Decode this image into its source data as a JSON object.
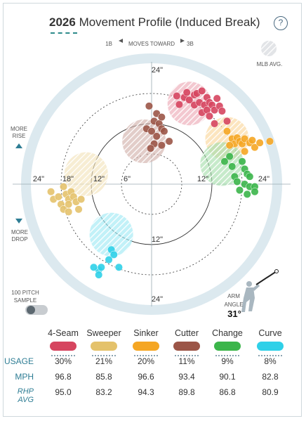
{
  "header": {
    "year": "2026",
    "title": "Movement Profile (Induced Break)",
    "help_label": "?"
  },
  "nav": {
    "left_label": "1B",
    "center_label": "MOVES TOWARD",
    "right_label": "3B"
  },
  "legend": {
    "mlb_avg_label": "MLB AVG."
  },
  "axis_labels": {
    "more_rise": "MORE\nRISE",
    "more_drop": "MORE\nDROP",
    "top24": "24\"",
    "bottom24": "24\"",
    "bottom12": "12\"",
    "left24": "24\"",
    "left18": "18\"",
    "left12": "12\"",
    "left6": "6\"",
    "right12": "12\"",
    "right24": "24\""
  },
  "sample": {
    "label": "100 PITCH\nSAMPLE",
    "toggle_on": false
  },
  "arm": {
    "label": "ARM\nANGLE",
    "value": "31°"
  },
  "colors": {
    "4-Seam": "#d6455f",
    "Sweeper": "#e4c26b",
    "Sinker": "#f5a623",
    "Cutter": "#9b5547",
    "Change": "#3bb54a",
    "Curve": "#2fd0e8",
    "ring_bg": "#dce9ef",
    "label_teal": "#2e7d94"
  },
  "table": {
    "pitches": [
      "4-Seam",
      "Sweeper",
      "Sinker",
      "Cutter",
      "Change",
      "Curve"
    ],
    "rows": [
      {
        "label": "USAGE",
        "values": [
          "30%",
          "21%",
          "20%",
          "11%",
          "9%",
          "8%"
        ]
      },
      {
        "label": "MPH",
        "values": [
          "96.8",
          "85.8",
          "96.6",
          "93.4",
          "90.1",
          "82.8"
        ]
      },
      {
        "label": "RHP AVG",
        "values": [
          "95.0",
          "83.2",
          "94.3",
          "89.8",
          "86.8",
          "80.9"
        ]
      }
    ]
  },
  "chart_data": {
    "type": "scatter",
    "xlabel": "",
    "ylabel": "",
    "xlim": [
      -24,
      24
    ],
    "ylim": [
      -24,
      24
    ],
    "mlb_avg": [
      {
        "name": "4-Seam",
        "x": 7.5,
        "y": 16
      },
      {
        "name": "Sinker",
        "x": 15,
        "y": 9
      },
      {
        "name": "Sweeper",
        "x": -13,
        "y": 2
      },
      {
        "name": "Cutter",
        "x": -1.5,
        "y": 8.5
      },
      {
        "name": "Change",
        "x": 14,
        "y": 4
      },
      {
        "name": "Curve",
        "x": -8,
        "y": -10
      }
    ],
    "series": [
      {
        "name": "4-Seam",
        "points": [
          [
            5,
            17.5
          ],
          [
            5.5,
            15.8
          ],
          [
            6.5,
            17.2
          ],
          [
            7.5,
            16.7
          ],
          [
            8.5,
            15.7
          ],
          [
            8.5,
            17.7
          ],
          [
            9.5,
            16.2
          ],
          [
            10,
            14.2
          ],
          [
            10.5,
            15.7
          ],
          [
            11,
            17.2
          ],
          [
            11,
            14.7
          ],
          [
            11.5,
            16.2
          ],
          [
            12,
            15.7
          ],
          [
            12.5,
            14.7
          ],
          [
            13,
            17
          ],
          [
            9,
            18
          ],
          [
            7,
            18.2
          ],
          [
            10,
            18.5
          ],
          [
            11.5,
            13.5
          ],
          [
            13.5,
            15.5
          ],
          [
            14,
            14.5
          ],
          [
            12.5,
            12
          ],
          [
            15,
            12.5
          ]
        ]
      },
      {
        "name": "Sinker",
        "points": [
          [
            15,
            10.5
          ],
          [
            16,
            9
          ],
          [
            16.5,
            8
          ],
          [
            17,
            9.2
          ],
          [
            17.5,
            8.5
          ],
          [
            18,
            8
          ],
          [
            18.5,
            9
          ],
          [
            19.5,
            8.2
          ],
          [
            20,
            8.7
          ],
          [
            20.5,
            7.3
          ],
          [
            21.5,
            8.2
          ],
          [
            23.5,
            8.5
          ],
          [
            15.5,
            7.7
          ],
          [
            18.5,
            6.5
          ]
        ]
      },
      {
        "name": "Sweeper",
        "points": [
          [
            -20,
            -1.5
          ],
          [
            -19.5,
            -3
          ],
          [
            -18.5,
            -2.5
          ],
          [
            -18,
            -4
          ],
          [
            -17,
            -2
          ],
          [
            -16.5,
            -3
          ],
          [
            -16,
            -1.5
          ],
          [
            -17.5,
            -0.5
          ],
          [
            -15.5,
            -2.5
          ],
          [
            -15,
            -3.5
          ],
          [
            -14,
            -3
          ],
          [
            -17.5,
            -5
          ],
          [
            -16.5,
            -5.5
          ],
          [
            -14.5,
            -5
          ],
          [
            -16.5,
            -4
          ]
        ]
      },
      {
        "name": "Cutter",
        "points": [
          [
            -0.5,
            15.5
          ],
          [
            1,
            14
          ],
          [
            0.5,
            12.5
          ],
          [
            1.5,
            12
          ],
          [
            -1,
            11
          ],
          [
            0,
            10.5
          ],
          [
            2,
            11
          ],
          [
            2.5,
            10.5
          ],
          [
            1,
            9.5
          ],
          [
            0.5,
            8
          ],
          [
            2,
            7.7
          ],
          [
            3.5,
            8.5
          ],
          [
            -0.2,
            7.1
          ],
          [
            2,
            13.3
          ]
        ]
      },
      {
        "name": "Change",
        "points": [
          [
            15.5,
            5.5
          ],
          [
            14.5,
            4.5
          ],
          [
            16,
            3.5
          ],
          [
            18,
            4.5
          ],
          [
            18.5,
            3
          ],
          [
            19,
            2
          ],
          [
            16.5,
            1.5
          ],
          [
            17,
            0.5
          ],
          [
            18.5,
            0
          ],
          [
            19.5,
            -0.5
          ],
          [
            20.5,
            -0.5
          ],
          [
            20.5,
            -1.5
          ],
          [
            19,
            -2
          ],
          [
            17.5,
            -1.2
          ],
          [
            19.5,
            1.5
          ]
        ]
      },
      {
        "name": "Curve",
        "points": [
          [
            -8,
            -13
          ],
          [
            -7.5,
            -14
          ],
          [
            -8.5,
            -15
          ],
          [
            -10.5,
            -17
          ],
          [
            -11.5,
            -16.5
          ],
          [
            -10,
            -16.5
          ],
          [
            -10.5,
            -18
          ],
          [
            -6.5,
            -16.5
          ]
        ]
      }
    ]
  }
}
